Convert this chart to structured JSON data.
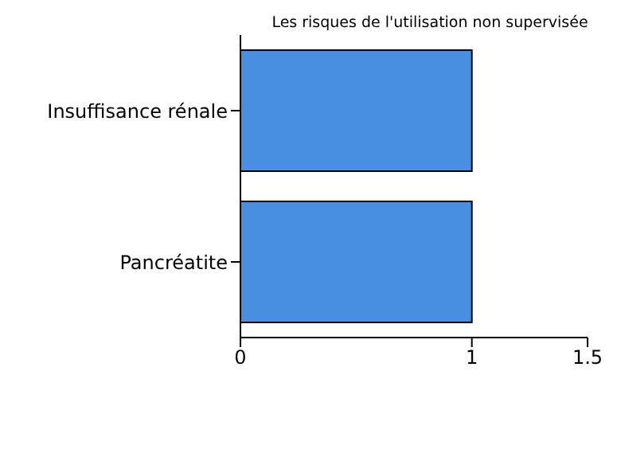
{
  "chart_data": {
    "type": "bar",
    "orientation": "horizontal",
    "title": "Les risques de l'utilisation non supervisée",
    "categories": [
      "Insuffisance rénale",
      "Pancréatite"
    ],
    "values": [
      1,
      1
    ],
    "color": "#4a90e2",
    "xlim": [
      0,
      1.5
    ],
    "xticks": [
      0,
      1,
      1.5
    ],
    "grid": false
  }
}
